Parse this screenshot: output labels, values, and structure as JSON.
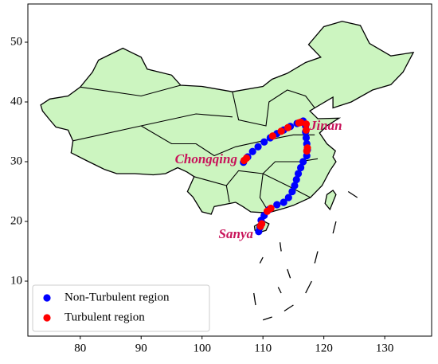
{
  "chart_data": {
    "type": "scatter",
    "xlim": [
      71.4,
      137.7
    ],
    "ylim": [
      0.8,
      56.4
    ],
    "xticks": [
      80,
      90,
      100,
      110,
      120,
      130
    ],
    "yticks": [
      10,
      20,
      30,
      40,
      50
    ],
    "legend": "lower left",
    "annotations": [
      "Jinan",
      "Chongqing",
      "Sanya"
    ],
    "series": [
      {
        "name": "Non-Turbulent region",
        "color": "#0000ff",
        "x": [
          106.8,
          107.5,
          108.3,
          109.2,
          110.2,
          111.2,
          112.3,
          113.4,
          114.5,
          115.6,
          116.6,
          117.0,
          117.0,
          117.1,
          117.2,
          117.3,
          117.2,
          116.6,
          116.2,
          115.8,
          115.5,
          115.2,
          114.8,
          114.2,
          113.4,
          112.3,
          111.0,
          110.2,
          109.7,
          109.5,
          109.3
        ],
        "y": [
          29.9,
          30.8,
          31.7,
          32.5,
          33.3,
          34.0,
          34.7,
          35.3,
          35.9,
          36.4,
          36.8,
          36.0,
          35.0,
          34.0,
          33.0,
          32.0,
          31.0,
          30.0,
          29.0,
          28.0,
          27.0,
          26.0,
          25.0,
          24.0,
          23.2,
          22.8,
          22.0,
          21.0,
          20.2,
          19.0,
          18.3
        ]
      },
      {
        "name": "Turbulent region",
        "color": "#ff0000",
        "x": [
          106.9,
          107.3,
          111.6,
          113.0,
          114.1,
          115.9,
          116.2,
          117.1,
          117.1,
          117.3,
          117.2,
          111.3,
          110.7,
          109.8,
          109.6
        ],
        "y": [
          30.2,
          30.6,
          34.3,
          35.1,
          35.7,
          36.5,
          36.6,
          36.3,
          35.3,
          32.3,
          31.8,
          22.2,
          21.7,
          19.6,
          19.2
        ]
      }
    ]
  }
}
